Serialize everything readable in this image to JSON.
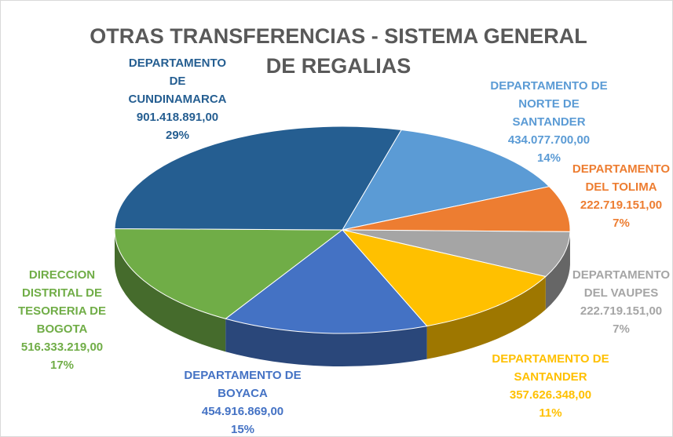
{
  "chart_data": {
    "type": "pie",
    "title": "OTRAS TRANSFERENCIAS - SISTEMA GENERAL DE REGALIAS",
    "categories": [
      "DEPARTAMENTO DE NORTE DE SANTANDER",
      "DEPARTAMENTO DEL TOLIMA",
      "DEPARTAMENTO DEL VAUPES",
      "DEPARTAMENTO DE SANTANDER",
      "DEPARTAMENTO DE BOYACA",
      "DIRECCION DISTRITAL DE TESORERIA DE BOGOTA",
      "DEPARTAMENTO DE CUNDINAMARCA"
    ],
    "values": [
      434077700,
      222719151,
      222719151,
      357626348,
      454916869,
      516333219,
      901418891
    ],
    "value_labels": [
      "434.077.700,00",
      "222.719.151,00",
      "222.719.151,00",
      "357.626.348,00",
      "454.916.869,00",
      "516.333.219,00",
      "901.418.891,00"
    ],
    "percent_labels": [
      "14%",
      "7%",
      "7%",
      "11%",
      "15%",
      "17%",
      "29%"
    ],
    "colors": [
      "#5b9bd5",
      "#ed7d31",
      "#a5a5a5",
      "#ffc000",
      "#4472c4",
      "#70ad47",
      "#255e91"
    ],
    "label_colors": [
      "#5b9bd5",
      "#ed7d31",
      "#a5a5a5",
      "#ffc000",
      "#4472c4",
      "#70ad47",
      "#255e91"
    ]
  }
}
